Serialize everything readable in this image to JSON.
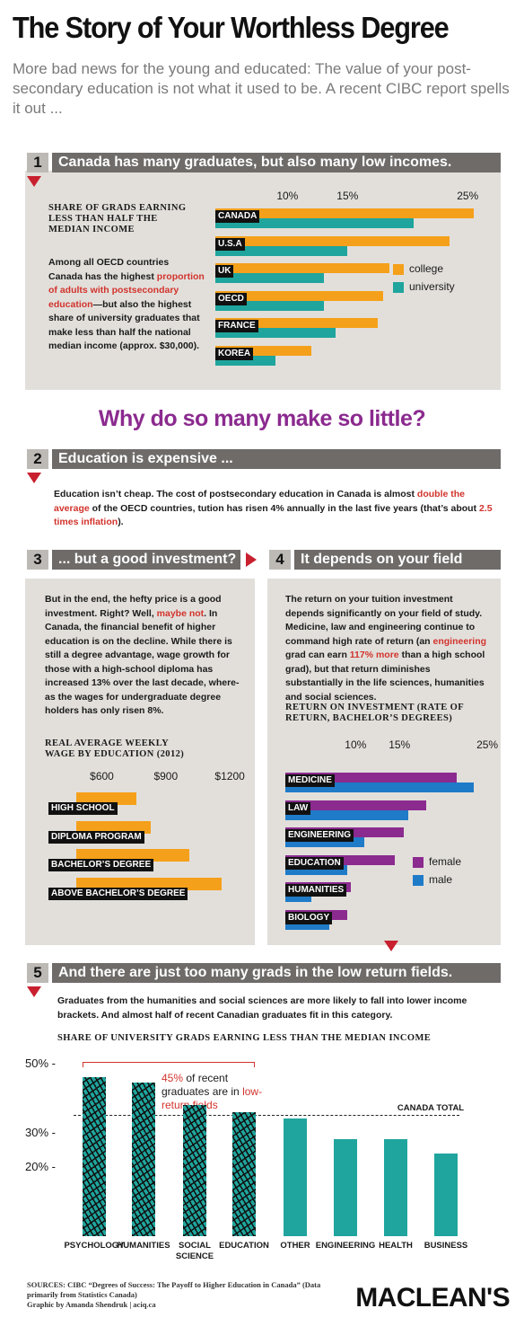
{
  "title": "The Story of Your Worthless Degree",
  "subtitle": "More bad news for the young and educated: The value of your post-secondary education is not what it used to be. A recent CIBC report spells it out ...",
  "colors": {
    "orange": "#f5a01a",
    "teal": "#1fa59d",
    "purple": "#8b2a8f",
    "blue": "#1f7bc7",
    "red": "#d2332c",
    "panel": "#e2dfdb",
    "section_bar": "#6e6b69"
  },
  "section1": {
    "num": "1",
    "heading": "Canada has many graduates, but also many low incomes.",
    "text_a": "Among all OECD countries Canada has the highest ",
    "text_red": "proportion of adults with postsecondary education",
    "text_b": "—but also the highest share of university graduates that make less than half the national median income (approx. $30,000)."
  },
  "why_heading": "Why do so many make so little?",
  "section2": {
    "num": "2",
    "heading": "Education is expensive ...",
    "text_a": "Education isn’t cheap. The cost of postsecondary education in Canada is almost ",
    "text_red1": "double the average",
    "text_b": " of the OECD countries, tution has risen 4% annually in the last five years (that’s about ",
    "text_red2": "2.5 times inflation",
    "text_c": ")."
  },
  "section3": {
    "num": "3",
    "heading": "... but a good investment?",
    "text_a": "But in the end, the hefty price is a good investment. Right? Well, ",
    "text_red": "maybe not",
    "text_b": ". In Canada, the financial benefit of higher education is on the decline. While there is still a degree advantage, wage growth for those with a high-school diploma has increased 13% over the last decade, where-as the wages for undergraduate degree holders has only risen 8%."
  },
  "section4": {
    "num": "4",
    "heading": "It depends on your field",
    "text_a": "The return on your tuition investment depends significantly on your field of study. Medicine, law and engineering continue to command high rate of return (an ",
    "text_red1": "engineering",
    "text_b": " grad can earn ",
    "text_red2": "117% more",
    "text_c": " than a high school grad), but that return diminishes substantially in the life sciences, humanities and social sciences."
  },
  "section5": {
    "num": "5",
    "heading": "And there are just too many grads in the low return fields.",
    "text": "Graduates from the humanities and social sciences are more likely to fall into lower income brackets. And almost half of recent Canadian graduates fit in this category."
  },
  "sources_a": "SOURCES: CIBC “Degrees of Success: The Payoff to Higher Education in Canada” (Data primarily from Statistics Canada)",
  "sources_b": "Graphic by Amanda Shendruk | aciq.ca",
  "logo": "MACLEAN'S",
  "chart_data": [
    {
      "type": "bar",
      "orientation": "horizontal",
      "title": "SHARE OF GRADS EARNING LESS THAN HALF THE MEDIAN INCOME",
      "categories": [
        "CANADA",
        "U.S.A",
        "UK",
        "OECD",
        "FRANCE",
        "KOREA"
      ],
      "series": [
        {
          "name": "college",
          "values": [
            25.5,
            23.5,
            18.5,
            18,
            17.5,
            12
          ]
        },
        {
          "name": "university",
          "values": [
            20.5,
            15,
            13,
            13,
            14,
            9
          ]
        }
      ],
      "xticks": [
        "10%",
        "15%",
        "25%"
      ],
      "tick_values": [
        10,
        15,
        25
      ],
      "xlim": [
        4,
        27
      ],
      "legend": "right"
    },
    {
      "type": "bar",
      "orientation": "horizontal",
      "title": "REAL AVERAGE WEEKLY WAGE BY EDUCATION (2012)",
      "categories": [
        "HIGH SCHOOL",
        "DIPLOMA PROGRAM",
        "BACHELOR’S DEGREE",
        "ABOVE BACHELOR’S DEGREE"
      ],
      "values": [
        760,
        830,
        1010,
        1160
      ],
      "xticks": [
        "$600",
        "$900",
        "$1200"
      ],
      "tick_values": [
        600,
        900,
        1200
      ],
      "xlim": [
        480,
        1250
      ]
    },
    {
      "type": "bar",
      "orientation": "horizontal",
      "title": "RETURN ON INVESTMENT (RATE OF RETURN, BACHELOR’S DEGREES)",
      "categories": [
        "MEDICINE",
        "LAW",
        "ENGINEERING",
        "EDUCATION",
        "HUMANITIES",
        "BIOLOGY"
      ],
      "series": [
        {
          "name": "female",
          "values": [
            21.5,
            18,
            15.5,
            14.5,
            9.5,
            9
          ]
        },
        {
          "name": "male",
          "values": [
            23.5,
            16,
            11,
            9,
            5,
            7
          ]
        }
      ],
      "xticks": [
        "10%",
        "15%",
        "25%"
      ],
      "tick_values": [
        10,
        15,
        25
      ],
      "xlim": [
        2,
        25.5
      ],
      "legend": "right"
    },
    {
      "type": "bar",
      "title": "SHARE OF UNIVERSITY GRADS EARNING LESS THAN THE MEDIAN INCOME",
      "categories": [
        "PSYCHOLOGY",
        "HUMANITIES",
        "SOCIAL SCIENCE",
        "EDUCATION",
        "OTHER",
        "ENGINEERING",
        "HEALTH",
        "BUSINESS"
      ],
      "values": [
        46,
        44.5,
        38,
        36,
        34,
        28,
        28,
        24
      ],
      "low_return": [
        true,
        true,
        true,
        true,
        false,
        false,
        false,
        false
      ],
      "yticks": [
        "50%",
        "30%",
        "20%"
      ],
      "tick_values": [
        50,
        30,
        20
      ],
      "ylim": [
        0,
        52
      ],
      "reference_line": {
        "label": "CANADA TOTAL",
        "value": 35
      },
      "annotation": {
        "red": "45%",
        "black": " of recent graduates are in ",
        "red2": "low-return fields"
      }
    }
  ]
}
